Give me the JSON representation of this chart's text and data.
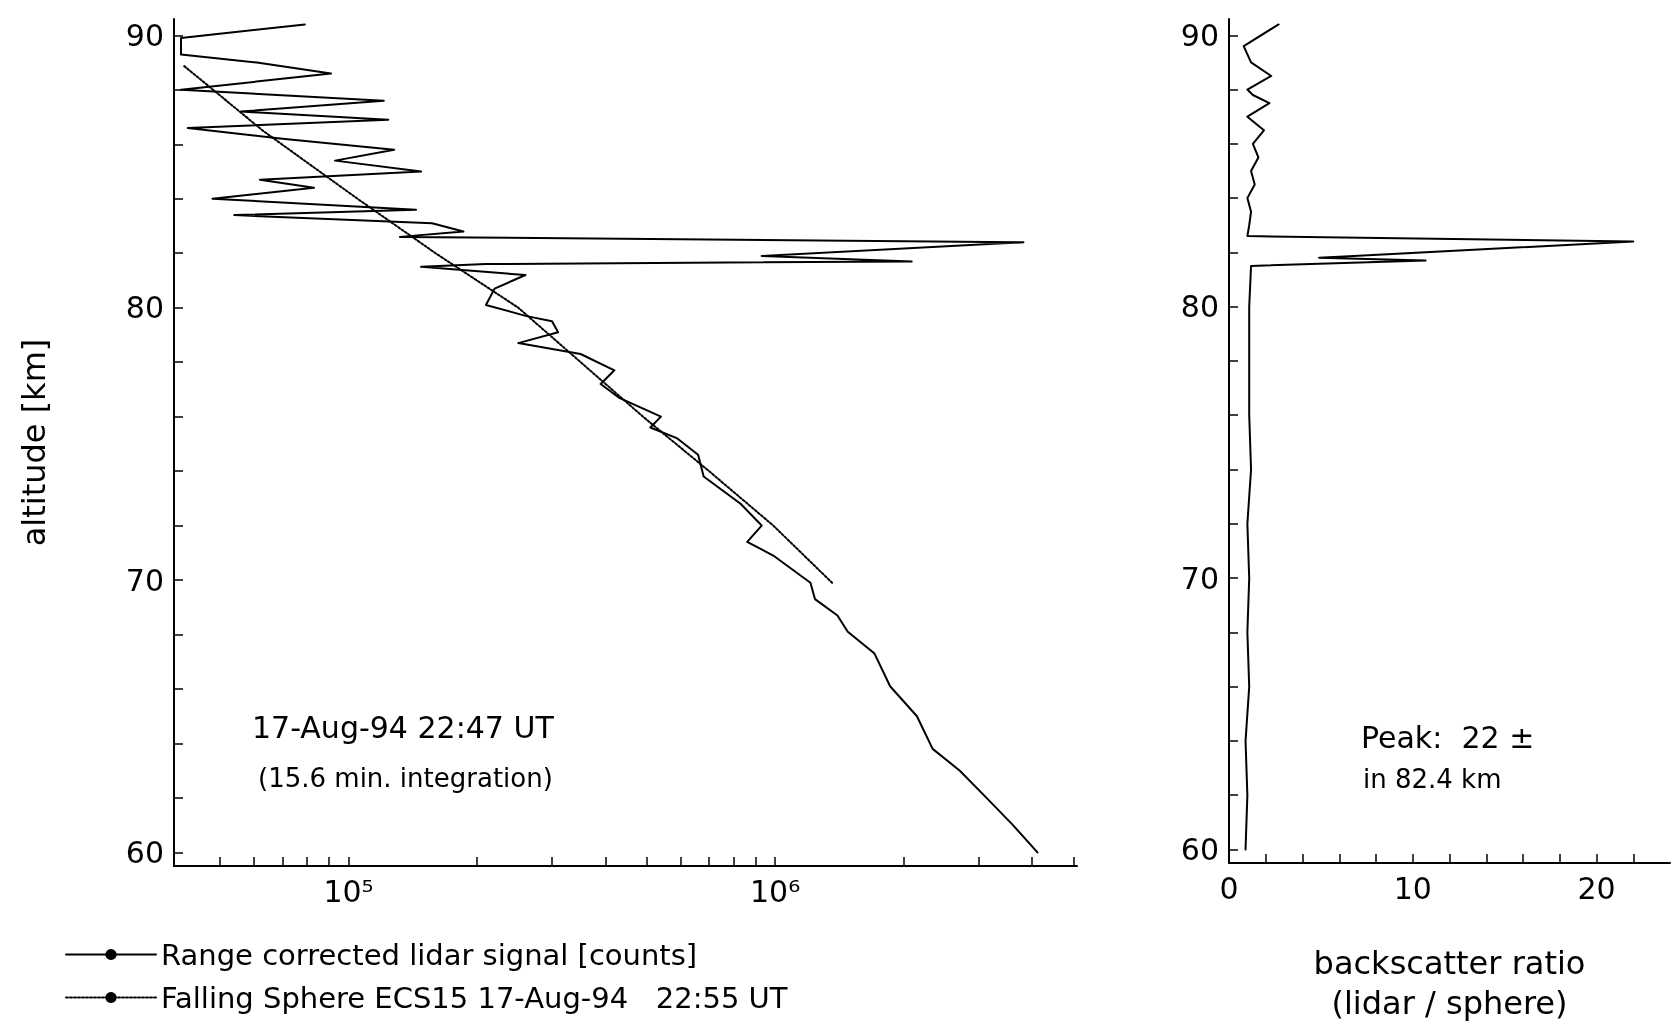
{
  "chart_data": [
    {
      "type": "line",
      "ylabel": "altitude [km]",
      "log": "x",
      "legend": "bottom left",
      "marker": "none",
      "grid": false,
      "xlim": [
        39000,
        5100000
      ],
      "xticks": [
        {
          "value": 50000,
          "label": null
        },
        {
          "value": 60000,
          "label": null
        },
        {
          "value": 70000,
          "label": null
        },
        {
          "value": 80000,
          "label": null
        },
        {
          "value": 90000,
          "label": null
        },
        {
          "value": 100000,
          "label": "10⁵"
        },
        {
          "value": 200000,
          "label": null
        },
        {
          "value": 300000,
          "label": null
        },
        {
          "value": 400000,
          "label": null
        },
        {
          "value": 500000,
          "label": null
        },
        {
          "value": 600000,
          "label": null
        },
        {
          "value": 700000,
          "label": null
        },
        {
          "value": 800000,
          "label": null
        },
        {
          "value": 900000,
          "label": null
        },
        {
          "value": 1000000,
          "label": "10⁶"
        },
        {
          "value": 2000000,
          "label": null
        },
        {
          "value": 3000000,
          "label": null
        },
        {
          "value": 4000000,
          "label": null
        },
        {
          "value": 5000000,
          "label": null
        }
      ],
      "ylim": [
        59.5,
        90.6
      ],
      "yticks": [
        60,
        {
          "value": 62,
          "label": null
        },
        {
          "value": 64,
          "label": null
        },
        {
          "value": 66,
          "label": null
        },
        {
          "value": 68,
          "label": null
        },
        70,
        {
          "value": 72,
          "label": null
        },
        {
          "value": 74,
          "label": null
        },
        {
          "value": 76,
          "label": null
        },
        {
          "value": 78,
          "label": null
        },
        80,
        {
          "value": 82,
          "label": null
        },
        {
          "value": 84,
          "label": null
        },
        {
          "value": 86,
          "label": null
        },
        {
          "value": 88,
          "label": null
        },
        90
      ],
      "annotations": [
        "17-Aug-94 22:47 UT",
        "(15.6 min. integration)"
      ],
      "series": [
        {
          "name": "Range corrected lidar signal [counts]",
          "color": "#000000",
          "line_style": "solid",
          "x": [
            4120000,
            3610000,
            3130000,
            2710000,
            2340000,
            2150000,
            1860000,
            1710000,
            1480000,
            1400000,
            1240000,
            1210000,
            990000,
            860000,
            930000,
            830000,
            680000,
            660000,
            590000,
            510000,
            540000,
            430000,
            390000,
            420000,
            350000,
            250000,
            310000,
            300000,
            260000,
            210000,
            220000,
            260000,
            148000,
            210000,
            2090000,
            930000,
            3820000,
            132000,
            186000,
            157000,
            54000,
            144000,
            48000,
            83000,
            62000,
            148000,
            93000,
            128000,
            70000,
            42000,
            124000,
            56000,
            121000,
            40500,
            91000,
            61000,
            40500,
            40500,
            79000
          ],
          "values": [
            60.0,
            61.0,
            62.0,
            63.0,
            63.8,
            65.0,
            66.1,
            67.3,
            68.1,
            68.7,
            69.3,
            69.9,
            70.9,
            71.4,
            72.0,
            72.8,
            73.8,
            74.6,
            75.2,
            75.6,
            76.0,
            76.7,
            77.2,
            77.7,
            78.3,
            78.7,
            79.1,
            79.5,
            79.7,
            80.1,
            80.7,
            81.2,
            81.5,
            81.6,
            81.7,
            81.9,
            82.4,
            82.6,
            82.8,
            83.1,
            83.4,
            83.6,
            84.0,
            84.4,
            84.7,
            85.0,
            85.4,
            85.8,
            86.2,
            86.6,
            86.9,
            87.2,
            87.6,
            88.0,
            88.6,
            89.0,
            89.3,
            89.9,
            90.4
          ]
        },
        {
          "name": "Falling Sphere ECS15 17-Aug-94   22:55 UT",
          "color": "#000000",
          "line_style": "dotted",
          "x": [
            1360000,
            990000,
            700000,
            490000,
            350000,
            250000,
            160000,
            105000,
            63000,
            41000
          ],
          "values": [
            69.9,
            72.0,
            74.0,
            76.0,
            78.0,
            80.0,
            82.0,
            84.0,
            86.5,
            88.9
          ]
        }
      ]
    },
    {
      "type": "line",
      "xlabel": "backscatter ratio\n(lidar / sphere)",
      "marker": "none",
      "grid": false,
      "xlim": [
        0,
        24
      ],
      "xticks": [
        0,
        {
          "value": 2,
          "label": null
        },
        {
          "value": 4,
          "label": null
        },
        {
          "value": 6,
          "label": null
        },
        {
          "value": 8,
          "label": null
        },
        10,
        {
          "value": 12,
          "label": null
        },
        {
          "value": 14,
          "label": null
        },
        {
          "value": 16,
          "label": null
        },
        {
          "value": 18,
          "label": null
        },
        20,
        {
          "value": 22,
          "label": null
        }
      ],
      "ylim": [
        59.5,
        90.6
      ],
      "yticks": [
        60,
        {
          "value": 62,
          "label": null
        },
        {
          "value": 64,
          "label": null
        },
        {
          "value": 66,
          "label": null
        },
        {
          "value": 68,
          "label": null
        },
        70,
        {
          "value": 72,
          "label": null
        },
        {
          "value": 74,
          "label": null
        },
        {
          "value": 76,
          "label": null
        },
        {
          "value": 78,
          "label": null
        },
        80,
        {
          "value": 82,
          "label": null
        },
        {
          "value": 84,
          "label": null
        },
        {
          "value": 86,
          "label": null
        },
        {
          "value": 88,
          "label": null
        },
        90
      ],
      "annotations": [
        "Peak:  22 ±",
        "in 82.4 km"
      ],
      "series": [
        {
          "color": "#000000",
          "line_style": "solid",
          "x": [
            0.9,
            1.0,
            0.9,
            1.1,
            1.0,
            1.1,
            1.0,
            1.2,
            1.1,
            1.1,
            1.1,
            1.2,
            10.7,
            4.9,
            22,
            1.0,
            1.1,
            1.2,
            1.0,
            1.4,
            1.2,
            1.6,
            1.3,
            1.9,
            1.0,
            2.2,
            1.3,
            1.0,
            2.3,
            1.2,
            0.8,
            2.7
          ],
          "values": [
            60.0,
            62.0,
            64.0,
            66.0,
            68.0,
            70.0,
            72.0,
            74.0,
            76.0,
            78.0,
            80.0,
            81.5,
            81.7,
            81.8,
            82.4,
            82.6,
            83.0,
            83.5,
            84.0,
            84.5,
            85.0,
            85.5,
            86.0,
            86.5,
            87.0,
            87.5,
            87.8,
            88.0,
            88.5,
            89.0,
            89.6,
            90.4
          ]
        }
      ]
    }
  ]
}
